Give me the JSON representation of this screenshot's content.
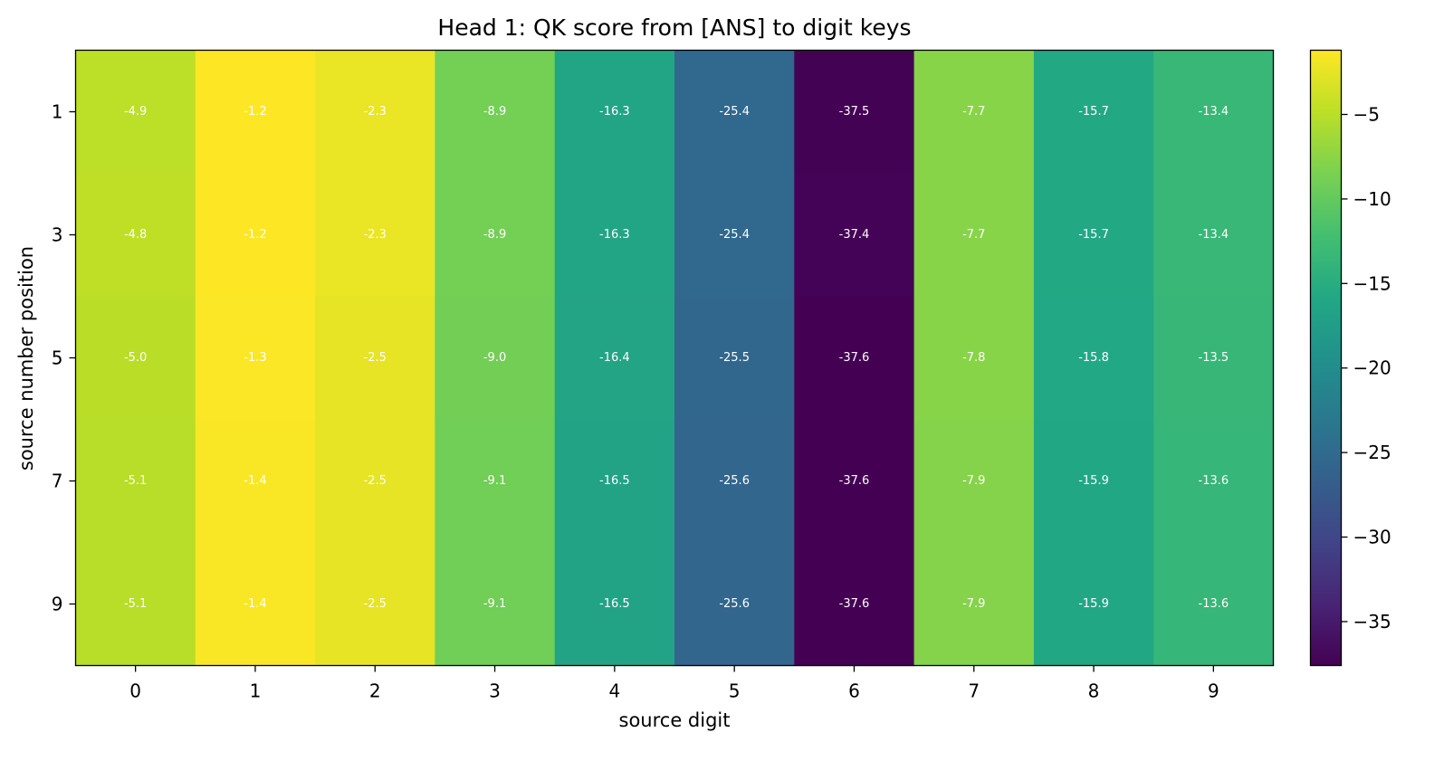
{
  "chart_data": {
    "type": "heatmap",
    "title": "Head 1: QK score from [ANS] to digit keys",
    "xlabel": "source digit",
    "ylabel": "source number position",
    "x_categories": [
      "0",
      "1",
      "2",
      "3",
      "4",
      "5",
      "6",
      "7",
      "8",
      "9"
    ],
    "y_categories": [
      "1",
      "3",
      "5",
      "7",
      "9"
    ],
    "values": [
      [
        -4.9,
        -1.2,
        -2.3,
        -8.9,
        -16.3,
        -25.4,
        -37.5,
        -7.7,
        -15.7,
        -13.4
      ],
      [
        -4.8,
        -1.2,
        -2.3,
        -8.9,
        -16.3,
        -25.4,
        -37.4,
        -7.7,
        -15.7,
        -13.4
      ],
      [
        -5.0,
        -1.3,
        -2.5,
        -9.0,
        -16.4,
        -25.5,
        -37.6,
        -7.8,
        -15.8,
        -13.5
      ],
      [
        -5.1,
        -1.4,
        -2.5,
        -9.1,
        -16.5,
        -25.6,
        -37.6,
        -7.9,
        -15.9,
        -13.6
      ],
      [
        -5.1,
        -1.4,
        -2.5,
        -9.1,
        -16.5,
        -25.6,
        -37.6,
        -7.9,
        -15.9,
        -13.6
      ]
    ],
    "value_labels_shown": true,
    "colormap": "viridis",
    "colorbar": {
      "range": [
        -37.6,
        -1.2
      ],
      "ticks": [
        -5,
        -10,
        -15,
        -20,
        -25,
        -30,
        -35
      ],
      "tick_labels": [
        "−5",
        "−10",
        "−15",
        "−20",
        "−25",
        "−30",
        "−35"
      ],
      "placement": "right"
    },
    "grid": false
  }
}
